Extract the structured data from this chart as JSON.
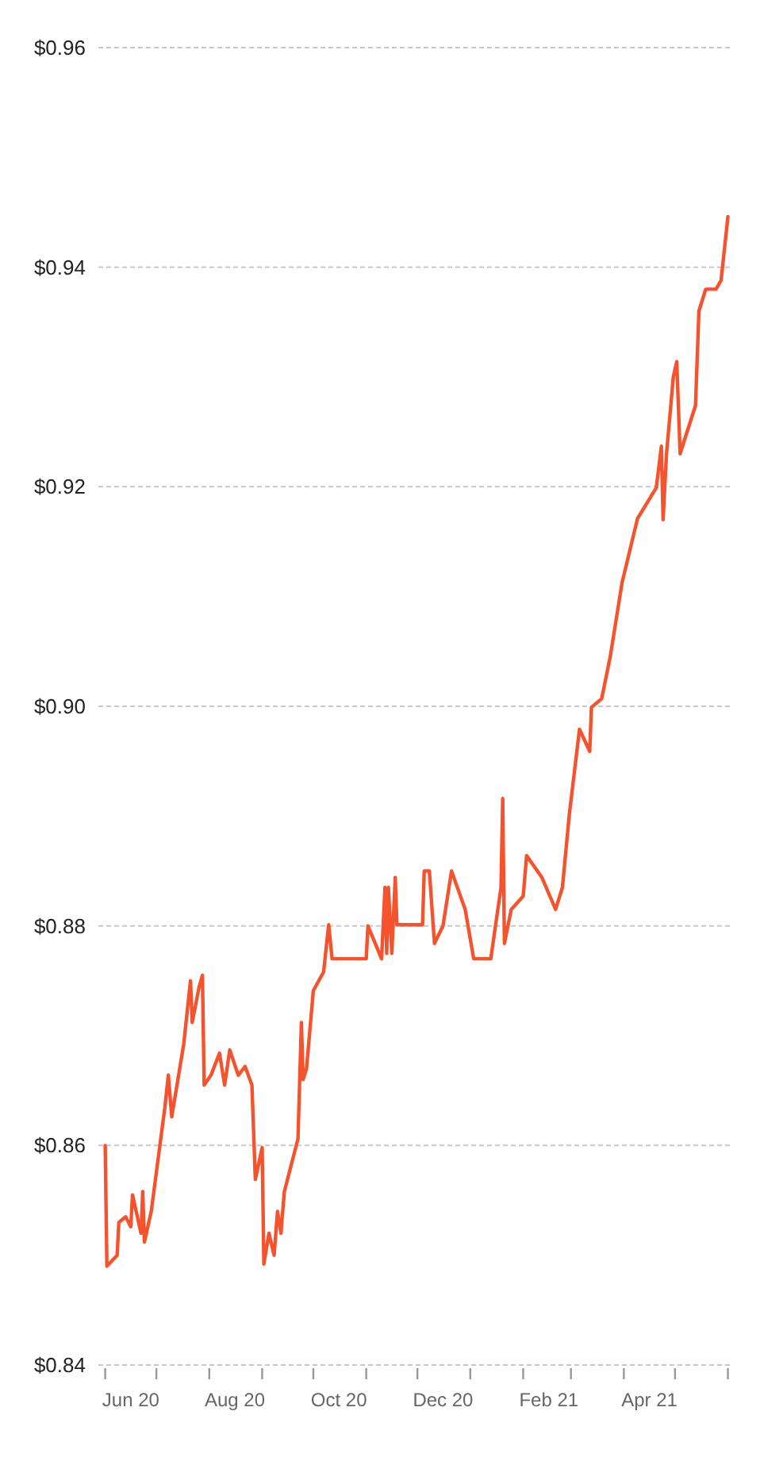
{
  "chart_data": {
    "type": "line",
    "x": [
      "2020-06-01",
      "2020-06-02",
      "2020-06-08",
      "2020-06-09",
      "2020-06-13",
      "2020-06-16",
      "2020-06-17",
      "2020-06-22",
      "2020-06-23",
      "2020-06-24",
      "2020-06-28",
      "2020-07-06",
      "2020-07-08",
      "2020-07-10",
      "2020-07-17",
      "2020-07-21",
      "2020-07-22",
      "2020-07-26",
      "2020-07-28",
      "2020-07-29",
      "2020-08-02",
      "2020-08-07",
      "2020-08-10",
      "2020-08-13",
      "2020-08-18",
      "2020-08-22",
      "2020-08-26",
      "2020-08-28",
      "2020-09-01",
      "2020-09-02",
      "2020-09-05",
      "2020-09-08",
      "2020-09-10",
      "2020-09-12",
      "2020-09-14",
      "2020-09-22",
      "2020-09-24",
      "2020-09-25",
      "2020-09-27",
      "2020-10-01",
      "2020-10-07",
      "2020-10-10",
      "2020-10-12",
      "2020-11-01",
      "2020-11-02",
      "2020-11-10",
      "2020-11-12",
      "2020-11-13",
      "2020-11-14",
      "2020-11-16",
      "2020-11-18",
      "2020-11-19",
      "2020-12-04",
      "2020-12-05",
      "2020-12-08",
      "2020-12-11",
      "2020-12-16",
      "2020-12-21",
      "2020-12-29",
      "2021-01-03",
      "2021-01-13",
      "2021-01-19",
      "2021-01-20",
      "2021-01-21",
      "2021-01-25",
      "2021-02-01",
      "2021-02-03",
      "2021-02-12",
      "2021-02-20",
      "2021-02-24",
      "2021-02-28",
      "2021-03-06",
      "2021-03-12",
      "2021-03-13",
      "2021-03-19",
      "2021-03-24",
      "2021-03-31",
      "2021-04-09",
      "2021-04-20",
      "2021-04-23",
      "2021-04-24",
      "2021-04-26",
      "2021-04-30",
      "2021-05-02",
      "2021-05-04",
      "2021-05-06",
      "2021-05-13",
      "2021-05-15",
      "2021-05-19",
      "2021-05-25",
      "2021-05-28",
      "2021-06-01"
    ],
    "series": [
      {
        "color": "#f4532e",
        "values": [
          0.86,
          0.849,
          0.85,
          0.853,
          0.8535,
          0.8526,
          0.8555,
          0.852,
          0.8558,
          0.8512,
          0.854,
          0.8635,
          0.8664,
          0.8626,
          0.8692,
          0.875,
          0.8712,
          0.8744,
          0.8755,
          0.8655,
          0.8664,
          0.8684,
          0.8655,
          0.8687,
          0.8664,
          0.8672,
          0.8655,
          0.8569,
          0.8598,
          0.8492,
          0.852,
          0.85,
          0.854,
          0.852,
          0.8558,
          0.8606,
          0.8712,
          0.866,
          0.867,
          0.8741,
          0.8758,
          0.8801,
          0.877,
          0.877,
          0.88,
          0.877,
          0.8835,
          0.8775,
          0.8835,
          0.8775,
          0.8844,
          0.8801,
          0.8801,
          0.885,
          0.885,
          0.8784,
          0.88,
          0.885,
          0.8815,
          0.877,
          0.877,
          0.8835,
          0.8916,
          0.8784,
          0.8815,
          0.8827,
          0.8864,
          0.8844,
          0.8815,
          0.8835,
          0.8901,
          0.8979,
          0.8959,
          0.8999,
          0.9007,
          0.9045,
          0.9113,
          0.9171,
          0.9199,
          0.9237,
          0.917,
          0.923,
          0.93,
          0.9314,
          0.923,
          0.924,
          0.9274,
          0.936,
          0.938,
          0.938,
          0.9388,
          0.9446
        ]
      }
    ],
    "xlim": [
      "2020-05-28",
      "2021-06-04"
    ],
    "xticks": [
      {
        "value": "2020-06-01",
        "label": null
      },
      {
        "value": "2020-06-16",
        "label": "Jun 20"
      },
      {
        "value": "2020-07-01",
        "label": null
      },
      {
        "value": "2020-08-01",
        "label": null
      },
      {
        "value": "2020-08-16",
        "label": "Aug 20"
      },
      {
        "value": "2020-09-01",
        "label": null
      },
      {
        "value": "2020-10-01",
        "label": null
      },
      {
        "value": "2020-10-16",
        "label": "Oct 20"
      },
      {
        "value": "2020-11-01",
        "label": null
      },
      {
        "value": "2020-12-01",
        "label": null
      },
      {
        "value": "2020-12-16",
        "label": "Dec 20"
      },
      {
        "value": "2021-01-01",
        "label": null
      },
      {
        "value": "2021-02-01",
        "label": null
      },
      {
        "value": "2021-02-16",
        "label": "Feb 21"
      },
      {
        "value": "2021-03-01",
        "label": null
      },
      {
        "value": "2021-04-01",
        "label": null
      },
      {
        "value": "2021-04-16",
        "label": "Apr 21"
      },
      {
        "value": "2021-05-01",
        "label": null
      },
      {
        "value": "2021-06-01",
        "label": null
      }
    ],
    "ylim": [
      0.84,
      0.96
    ],
    "yticks": [
      {
        "value": 0.84,
        "label": "$0.84"
      },
      {
        "value": 0.86,
        "label": "$0.86"
      },
      {
        "value": 0.88,
        "label": "$0.88"
      },
      {
        "value": 0.9,
        "label": "$0.90"
      },
      {
        "value": 0.92,
        "label": "$0.92"
      },
      {
        "value": 0.94,
        "label": "$0.94"
      },
      {
        "value": 0.96,
        "label": "$0.96"
      }
    ],
    "grid": "y"
  }
}
